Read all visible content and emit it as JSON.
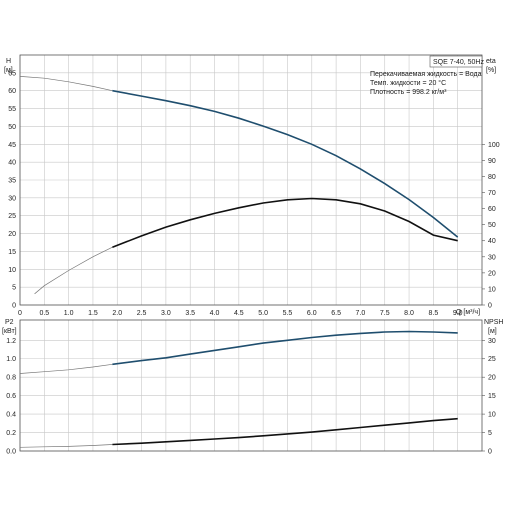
{
  "chart_data": [
    {
      "type": "line",
      "panel": "top",
      "title": "SQE 7-40, 50Hz",
      "info_lines": [
        "Перекачиваемая жидкость = Вода",
        "Темп. жидкости = 20 °C",
        "Плотность = 998.2 кг/м³"
      ],
      "xlabel": "Q [м³/ч]",
      "x_ticks": [
        "0",
        "0.5",
        "1.0",
        "1.5",
        "2.0",
        "2.5",
        "3.0",
        "3.5",
        "4.0",
        "4.5",
        "5.0",
        "5.5",
        "6.0",
        "6.5",
        "7.0",
        "7.5",
        "8.0",
        "8.5",
        "9.0"
      ],
      "xlim": [
        0,
        9.5
      ],
      "y_left": {
        "label_top": "H",
        "label_unit": "[м]",
        "ticks": [
          "0",
          "5",
          "10",
          "15",
          "20",
          "25",
          "30",
          "35",
          "40",
          "45",
          "50",
          "55",
          "60",
          "65"
        ],
        "ylim": [
          0,
          70
        ]
      },
      "y_right": {
        "label_top": "eta",
        "label_unit": "[%]",
        "ticks": [
          "0",
          "10",
          "20",
          "30",
          "40",
          "50",
          "60",
          "70",
          "80",
          "90",
          "100"
        ],
        "ylim": [
          0,
          155.6
        ]
      },
      "grid": true,
      "series": [
        {
          "axis": "left",
          "color": "#1f4e6e",
          "thin_until": 1.9,
          "x": [
            0.0,
            0.5,
            1.0,
            1.5,
            1.9,
            2.5,
            3.0,
            3.5,
            4.0,
            4.5,
            5.0,
            5.5,
            6.0,
            6.5,
            7.0,
            7.5,
            8.0,
            8.5,
            9.0
          ],
          "y": [
            64,
            63.5,
            62.5,
            61.2,
            60,
            58.5,
            57.2,
            55.8,
            54.2,
            52.3,
            50.1,
            47.7,
            45.0,
            41.8,
            38.1,
            34.0,
            29.5,
            24.5,
            19.0
          ]
        },
        {
          "axis": "right",
          "color": "#111111",
          "thin_until": 1.9,
          "x": [
            0.3,
            0.5,
            1.0,
            1.5,
            1.9,
            2.5,
            3.0,
            3.5,
            4.0,
            4.5,
            5.0,
            5.5,
            6.0,
            6.5,
            7.0,
            7.5,
            8.0,
            8.5,
            9.0
          ],
          "y": [
            7,
            12,
            21.5,
            30,
            36,
            43,
            48.5,
            53,
            57,
            60.5,
            63.5,
            65.5,
            66.3,
            65.5,
            63,
            58.5,
            52,
            43.5,
            40
          ]
        }
      ]
    },
    {
      "type": "line",
      "panel": "bottom",
      "y_left": {
        "label_top": "P2",
        "label_unit": "[кВт]",
        "ticks": [
          "0.0",
          "0.2",
          "0.4",
          "0.6",
          "0.8",
          "1.0",
          "1.2"
        ],
        "ylim": [
          0,
          1.42
        ]
      },
      "y_right": {
        "label_top": "NPSH",
        "label_unit": "[м]",
        "ticks": [
          "0",
          "5",
          "10",
          "15",
          "20",
          "25",
          "30"
        ],
        "ylim": [
          0,
          35.5
        ]
      },
      "grid": true,
      "series": [
        {
          "axis": "left",
          "color": "#1f4e6e",
          "thin_until": 1.9,
          "x": [
            0.0,
            0.5,
            1.0,
            1.5,
            1.9,
            2.5,
            3.0,
            3.5,
            4.0,
            4.5,
            5.0,
            5.5,
            6.0,
            6.5,
            7.0,
            7.5,
            8.0,
            8.5,
            9.0
          ],
          "y": [
            0.84,
            0.86,
            0.88,
            0.91,
            0.94,
            0.98,
            1.01,
            1.05,
            1.09,
            1.13,
            1.17,
            1.2,
            1.23,
            1.255,
            1.275,
            1.29,
            1.295,
            1.29,
            1.28
          ]
        },
        {
          "axis": "left",
          "color": "#111111",
          "thin_until": 1.9,
          "x": [
            0.0,
            0.5,
            1.0,
            1.5,
            1.9,
            2.5,
            3.0,
            3.5,
            4.0,
            4.5,
            5.0,
            5.5,
            6.0,
            6.5,
            7.0,
            7.5,
            8.0,
            8.5,
            9.0
          ],
          "y": [
            0.04,
            0.045,
            0.05,
            0.06,
            0.07,
            0.085,
            0.1,
            0.115,
            0.13,
            0.145,
            0.165,
            0.185,
            0.205,
            0.23,
            0.255,
            0.28,
            0.305,
            0.33,
            0.35
          ]
        }
      ]
    }
  ]
}
